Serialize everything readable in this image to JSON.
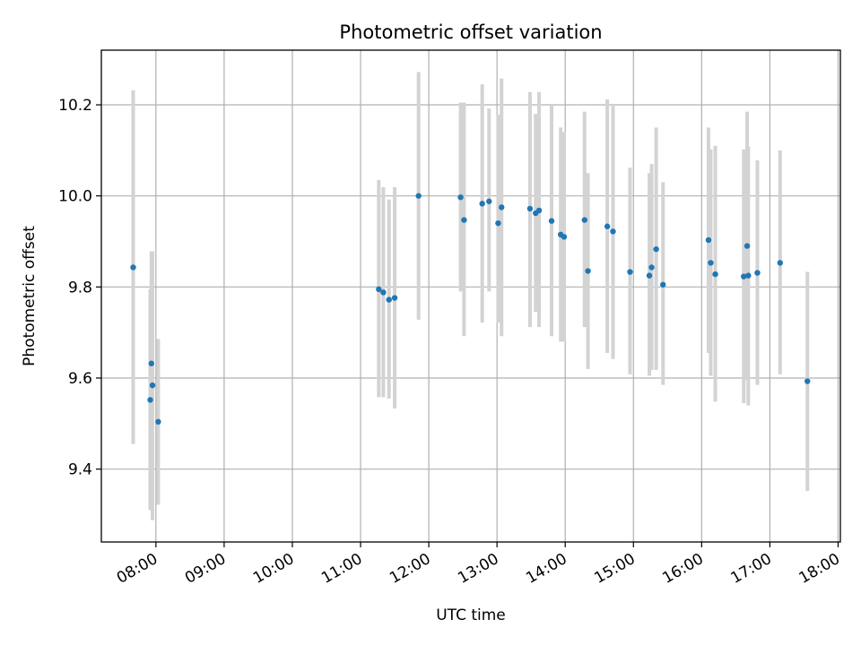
{
  "chart_data": {
    "type": "scatter",
    "title": "Photometric offset variation",
    "xlabel": "UTC time",
    "ylabel": "Photometric offset",
    "grid": true,
    "x_ticks": [
      "08:00",
      "09:00",
      "10:00",
      "11:00",
      "12:00",
      "13:00",
      "14:00",
      "15:00",
      "16:00",
      "17:00",
      "18:00"
    ],
    "y_ticks": [
      "9.4",
      "9.6",
      "9.8",
      "10.0",
      "10.2"
    ],
    "xlim": [
      "07:12",
      "18:02"
    ],
    "ylim": [
      9.24,
      10.32
    ],
    "series": [
      {
        "marker_color": "#1f77b4",
        "errorbar_color": "#d3d3d3",
        "points": [
          {
            "x": "07:40",
            "y": 9.843,
            "lo": 9.455,
            "hi": 10.232
          },
          {
            "x": "07:55",
            "y": 9.552,
            "lo": 9.31,
            "hi": 9.795
          },
          {
            "x": "07:56",
            "y": 9.632,
            "lo": 9.38,
            "hi": 9.878
          },
          {
            "x": "07:57",
            "y": 9.584,
            "lo": 9.288,
            "hi": 9.878
          },
          {
            "x": "08:02",
            "y": 9.504,
            "lo": 9.322,
            "hi": 9.686
          },
          {
            "x": "11:16",
            "y": 9.795,
            "lo": 9.558,
            "hi": 10.035
          },
          {
            "x": "11:20",
            "y": 9.788,
            "lo": 9.558,
            "hi": 10.019
          },
          {
            "x": "11:25",
            "y": 9.772,
            "lo": 9.555,
            "hi": 9.992
          },
          {
            "x": "11:30",
            "y": 9.776,
            "lo": 9.533,
            "hi": 10.019
          },
          {
            "x": "11:51",
            "y": 10.0,
            "lo": 9.728,
            "hi": 10.272
          },
          {
            "x": "12:28",
            "y": 9.997,
            "lo": 9.79,
            "hi": 10.205
          },
          {
            "x": "12:31",
            "y": 9.947,
            "lo": 9.692,
            "hi": 10.205
          },
          {
            "x": "12:47",
            "y": 9.983,
            "lo": 9.722,
            "hi": 10.245
          },
          {
            "x": "12:53",
            "y": 9.988,
            "lo": 9.79,
            "hi": 10.192
          },
          {
            "x": "13:01",
            "y": 9.94,
            "lo": 9.722,
            "hi": 10.178
          },
          {
            "x": "13:04",
            "y": 9.975,
            "lo": 9.692,
            "hi": 10.258
          },
          {
            "x": "13:29",
            "y": 9.972,
            "lo": 9.712,
            "hi": 10.228
          },
          {
            "x": "13:34",
            "y": 9.962,
            "lo": 9.745,
            "hi": 10.18
          },
          {
            "x": "13:37",
            "y": 9.968,
            "lo": 9.712,
            "hi": 10.228
          },
          {
            "x": "13:48",
            "y": 9.945,
            "lo": 9.692,
            "hi": 10.2
          },
          {
            "x": "13:56",
            "y": 9.915,
            "lo": 9.68,
            "hi": 10.15
          },
          {
            "x": "13:59",
            "y": 9.91,
            "lo": 9.68,
            "hi": 10.14
          },
          {
            "x": "14:17",
            "y": 9.947,
            "lo": 9.712,
            "hi": 10.185
          },
          {
            "x": "14:20",
            "y": 9.835,
            "lo": 9.62,
            "hi": 10.05
          },
          {
            "x": "14:37",
            "y": 9.933,
            "lo": 9.655,
            "hi": 10.212
          },
          {
            "x": "14:42",
            "y": 9.922,
            "lo": 9.642,
            "hi": 10.2
          },
          {
            "x": "14:57",
            "y": 9.833,
            "lo": 9.608,
            "hi": 10.062
          },
          {
            "x": "15:14",
            "y": 9.825,
            "lo": 9.605,
            "hi": 10.05
          },
          {
            "x": "15:16",
            "y": 9.843,
            "lo": 9.618,
            "hi": 10.07
          },
          {
            "x": "15:20",
            "y": 9.883,
            "lo": 9.618,
            "hi": 10.15
          },
          {
            "x": "15:26",
            "y": 9.805,
            "lo": 9.585,
            "hi": 10.03
          },
          {
            "x": "16:06",
            "y": 9.903,
            "lo": 9.655,
            "hi": 10.15
          },
          {
            "x": "16:08",
            "y": 9.853,
            "lo": 9.605,
            "hi": 10.102
          },
          {
            "x": "16:12",
            "y": 9.828,
            "lo": 9.548,
            "hi": 10.11
          },
          {
            "x": "16:37",
            "y": 9.823,
            "lo": 9.545,
            "hi": 10.102
          },
          {
            "x": "16:40",
            "y": 9.89,
            "lo": 9.595,
            "hi": 10.185
          },
          {
            "x": "16:41",
            "y": 9.825,
            "lo": 9.54,
            "hi": 10.108
          },
          {
            "x": "16:49",
            "y": 9.831,
            "lo": 9.585,
            "hi": 10.078
          },
          {
            "x": "17:09",
            "y": 9.853,
            "lo": 9.608,
            "hi": 10.1
          },
          {
            "x": "17:33",
            "y": 9.593,
            "lo": 9.352,
            "hi": 9.833
          }
        ]
      }
    ]
  }
}
